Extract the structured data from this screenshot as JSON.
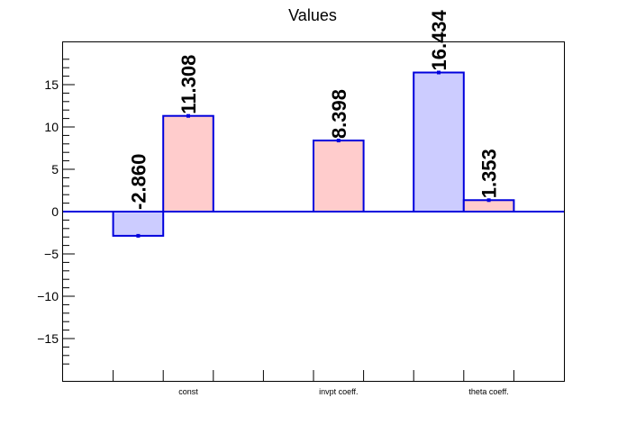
{
  "chart_data": {
    "type": "bar",
    "title": "Values",
    "xlabel": "",
    "ylabel": "",
    "ylim": [
      -20,
      20
    ],
    "y_ticks": [
      "15",
      "10",
      "5",
      "0",
      "−5",
      "−10",
      "−15"
    ],
    "y_tick_values": [
      15,
      10,
      5,
      0,
      -5,
      -10,
      -15
    ],
    "categories": [
      "const",
      "invpt coeff.",
      "theta coeff."
    ],
    "grid": false,
    "bars": [
      {
        "category": "const",
        "slot": 1,
        "value": -2.86,
        "label": "-2.860",
        "fill": "#ccccff"
      },
      {
        "category": "const",
        "slot": 2,
        "value": 11.308,
        "label": "11.308",
        "fill": "#ffcccc"
      },
      {
        "category": "invpt coeff.",
        "slot": 5,
        "value": 8.398,
        "label": "8.398",
        "fill": "#ffcccc"
      },
      {
        "category": "theta coeff.",
        "slot": 7,
        "value": 16.434,
        "label": "16.434",
        "fill": "#ccccff"
      },
      {
        "category": "theta coeff.",
        "slot": 8,
        "value": 1.353,
        "label": "1.353",
        "fill": "#ffcccc"
      }
    ],
    "colors": {
      "outline": "#0000dd",
      "series_a": "#ccccff",
      "series_b": "#ffcccc",
      "zero_line": "#0000dd"
    }
  }
}
